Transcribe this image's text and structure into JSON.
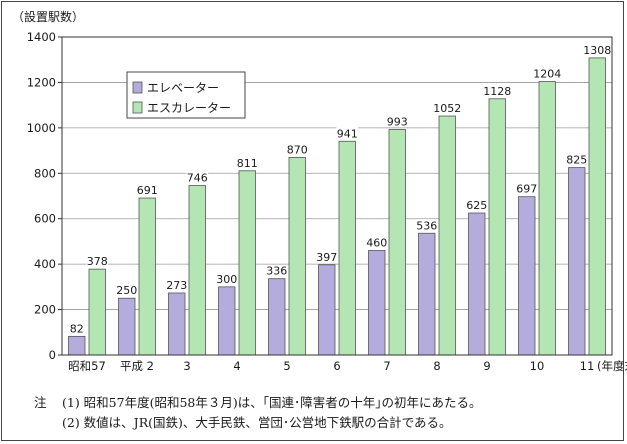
{
  "chart_data": {
    "type": "bar",
    "y_unit_label": "（設置駅数）",
    "categories": [
      "昭和57",
      "平成 2",
      "3",
      "4",
      "5",
      "6",
      "7",
      "8",
      "9",
      "10",
      "11"
    ],
    "x_suffix": "(年度末)",
    "ylim": [
      0,
      1400
    ],
    "yticks": [
      0,
      200,
      400,
      600,
      800,
      1000,
      1200,
      1400
    ],
    "series": [
      {
        "name": "エレベーター",
        "color": "#b3acdc",
        "values": [
          82,
          250,
          273,
          300,
          336,
          397,
          460,
          536,
          625,
          697,
          825
        ]
      },
      {
        "name": "エスカレーター",
        "color": "#b4e6b4",
        "values": [
          378,
          691,
          746,
          811,
          870,
          941,
          993,
          1052,
          1128,
          1204,
          1308
        ]
      }
    ],
    "legend_position": "top-left"
  },
  "notes": {
    "head": "注",
    "line1": "(1)  昭和57年度(昭和58年３月)は、｢国連･障害者の十年｣の初年にあたる。",
    "line2": "(2)  数値は、JR(国鉄)、大手民鉄、営団･公営地下鉄駅の合計である。"
  }
}
